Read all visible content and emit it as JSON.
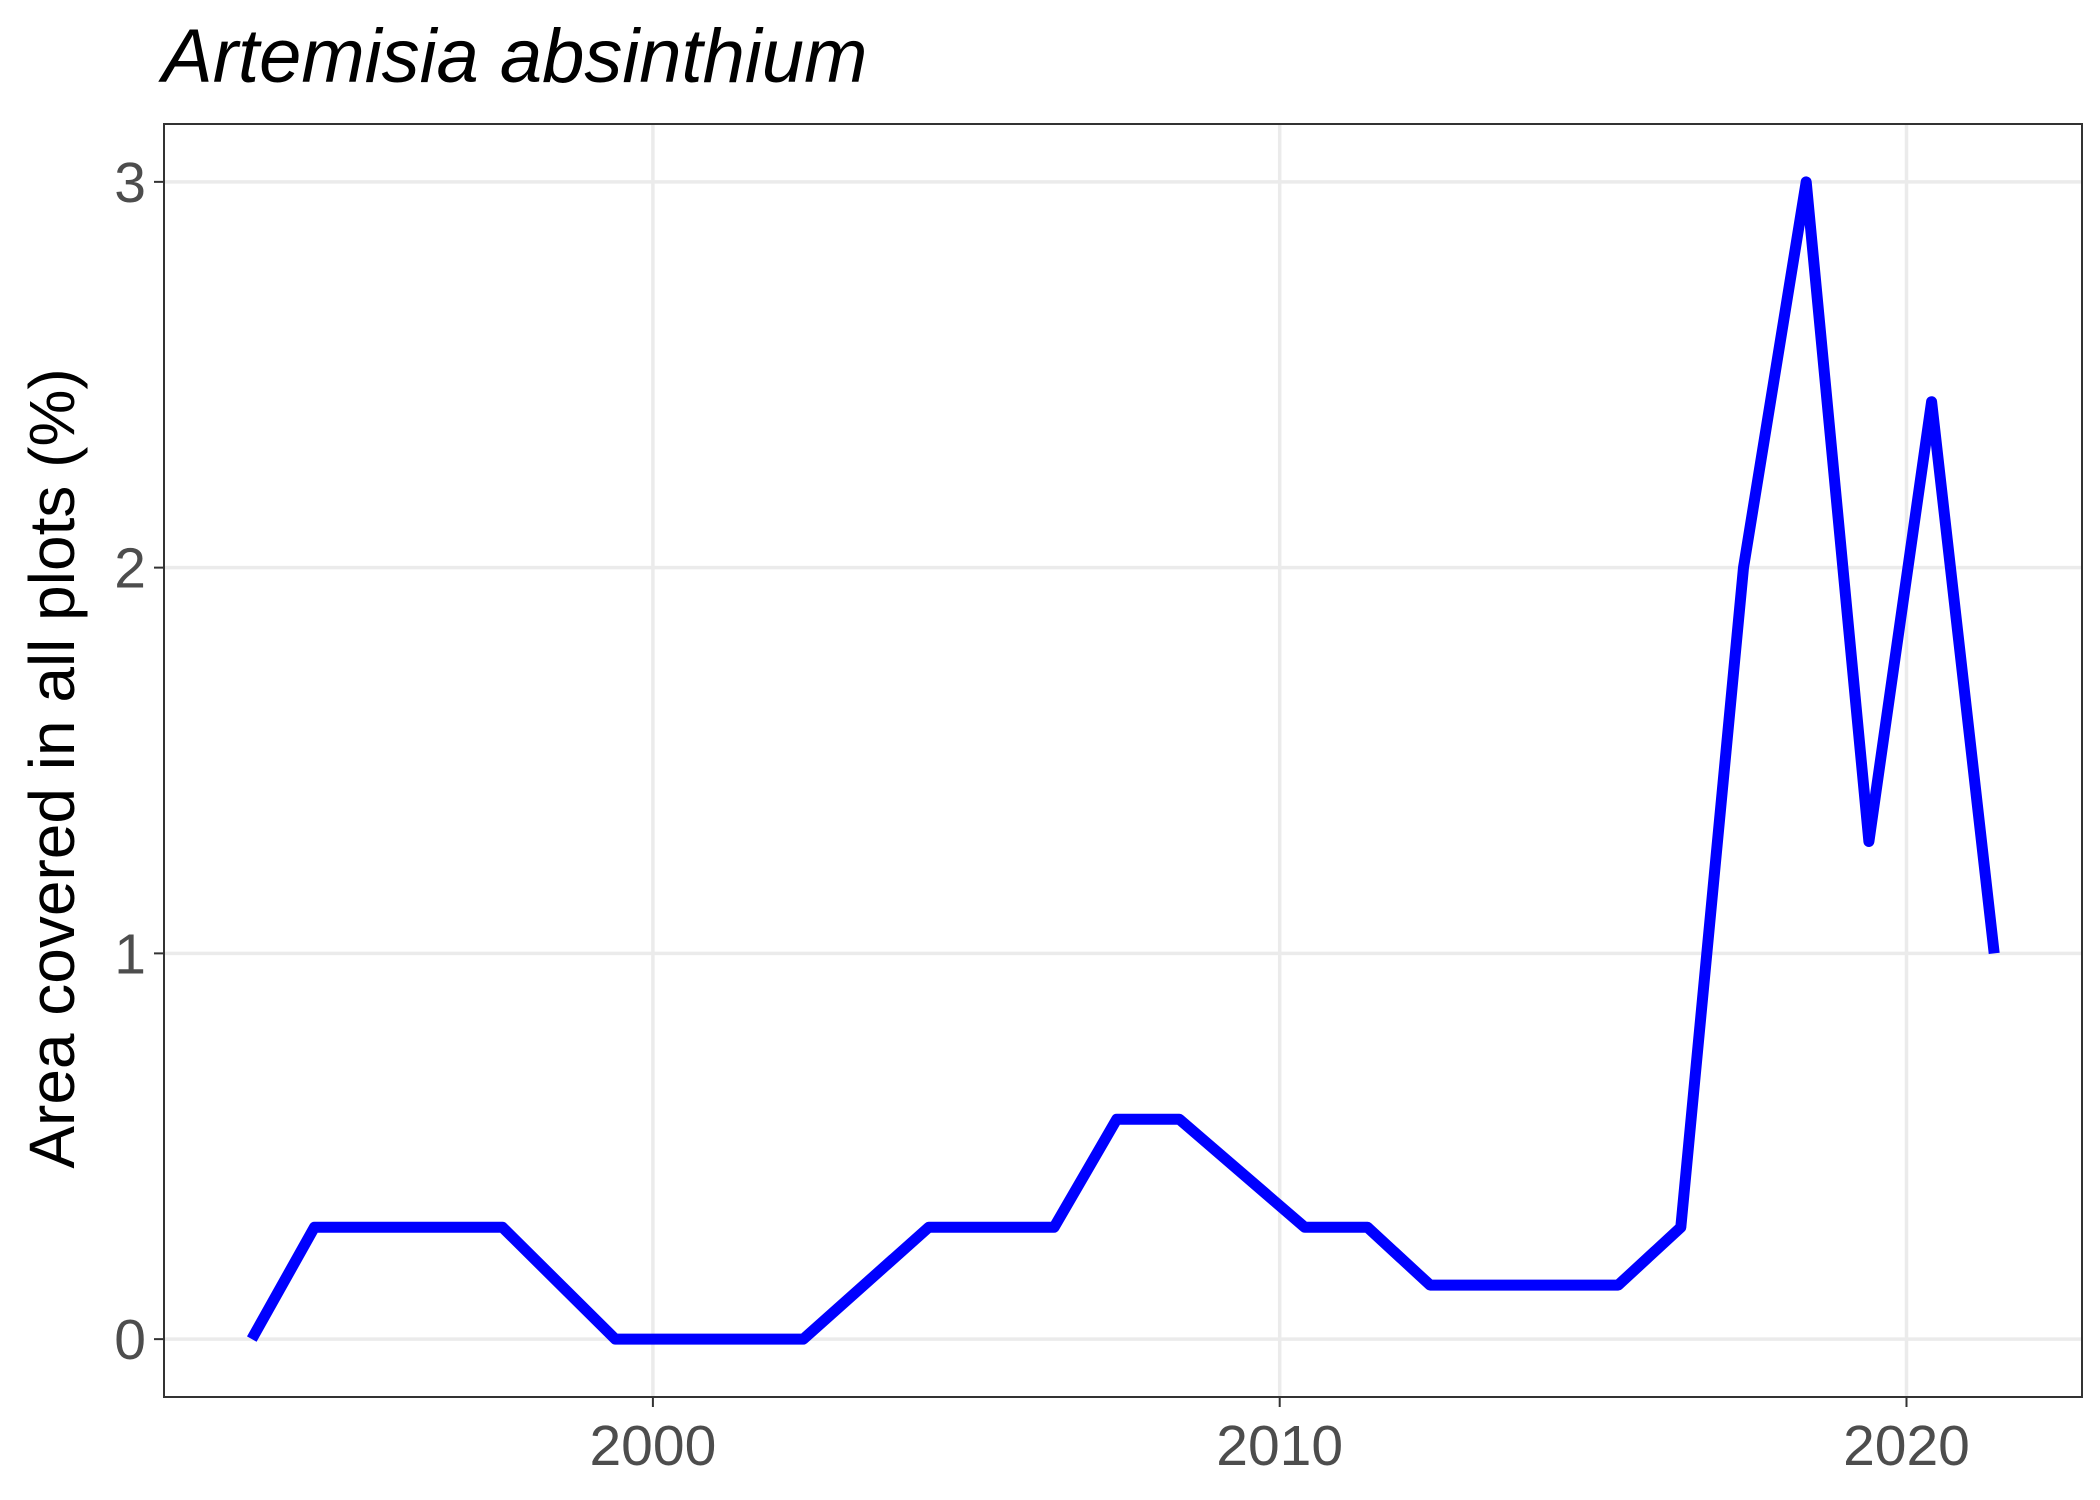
{
  "chart_data": {
    "type": "line",
    "title": "Artemisia absinthium",
    "xlabel": "",
    "ylabel": "Area covered in all plots (%)",
    "xlim": [
      1992.2,
      2022.8
    ],
    "ylim": [
      -0.15,
      3.15
    ],
    "x_ticks": [
      2000,
      2010,
      2020
    ],
    "y_ticks": [
      0,
      1,
      2,
      3
    ],
    "x_tick_labels": [
      "2000",
      "2010",
      "2020"
    ],
    "y_tick_labels": [
      "0",
      "1",
      "2",
      "3"
    ],
    "grid": true,
    "legend": "none",
    "series": [
      {
        "color": "#0000ff",
        "x": [
          1993.6,
          1994.6,
          1997.6,
          1999.4,
          2002.4,
          2004.4,
          2006.4,
          2007.4,
          2008.4,
          2010.4,
          2011.4,
          2012.4,
          2015.4,
          2016.4,
          2017.4,
          2018.4,
          2019.4,
          2020.4,
          2021.4
        ],
        "y": [
          0.0,
          0.29,
          0.29,
          0.0,
          0.0,
          0.29,
          0.29,
          0.57,
          0.57,
          0.29,
          0.29,
          0.14,
          0.14,
          0.29,
          2.0,
          3.0,
          1.29,
          2.43,
          1.0
        ]
      }
    ]
  }
}
